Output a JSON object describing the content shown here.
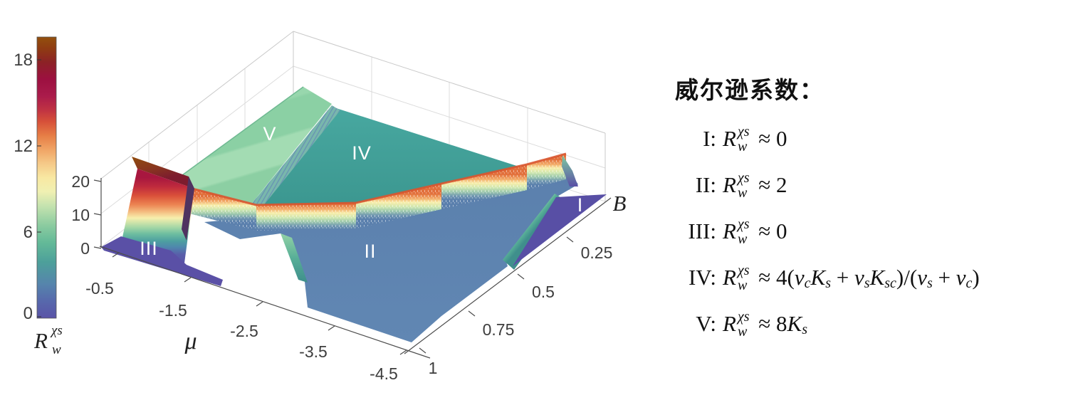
{
  "figure": {
    "background": "#ffffff"
  },
  "colorbar": {
    "ticks": [
      "18",
      "12",
      "6",
      "0"
    ],
    "label_base": "R",
    "label_sup": "χs",
    "label_sub": "w",
    "vmin": 0,
    "vmax": 19.5
  },
  "zaxis": {
    "ticks": [
      "20",
      "10",
      "0"
    ]
  },
  "xaxis": {
    "label": "μ",
    "ticks": [
      "-0.5",
      "-1.5",
      "-2.5",
      "-3.5",
      "-4.5"
    ]
  },
  "yaxis": {
    "label": "B",
    "ticks": [
      "1",
      "0.75",
      "0.5",
      "0.25"
    ]
  },
  "regions": {
    "I": "I",
    "II": "II",
    "III": "III",
    "IV": "IV",
    "V": "V"
  },
  "legend": {
    "title": "威尔逊系数：",
    "items": [
      {
        "label": "I:",
        "parts": [
          {
            "t": "R",
            "i": 1
          },
          {
            "sup": "χs",
            "sub": "w"
          },
          {
            "t": " ≈ 0"
          }
        ]
      },
      {
        "label": "II:",
        "parts": [
          {
            "t": "R",
            "i": 1
          },
          {
            "sup": "χs",
            "sub": "w"
          },
          {
            "t": " ≈ 2"
          }
        ]
      },
      {
        "label": "III:",
        "parts": [
          {
            "t": "R",
            "i": 1
          },
          {
            "sup": "χs",
            "sub": "w"
          },
          {
            "t": " ≈ 0"
          }
        ]
      },
      {
        "label": "IV:",
        "parts": [
          {
            "t": "R",
            "i": 1
          },
          {
            "sup": "χs",
            "sub": "w"
          },
          {
            "t": " ≈ 4("
          },
          {
            "t": "v",
            "i": 1
          },
          {
            "sub": "c"
          },
          {
            "t": "K",
            "i": 1
          },
          {
            "sub": "s"
          },
          {
            "t": " + "
          },
          {
            "t": "v",
            "i": 1
          },
          {
            "sub": "s"
          },
          {
            "t": "K",
            "i": 1
          },
          {
            "sub": "sc"
          },
          {
            "t": ")/("
          },
          {
            "t": "v",
            "i": 1
          },
          {
            "sub": "s"
          },
          {
            "t": " + "
          },
          {
            "t": "v",
            "i": 1
          },
          {
            "sub": "c"
          },
          {
            "t": ")"
          }
        ]
      },
      {
        "label": "V:",
        "parts": [
          {
            "t": "R",
            "i": 1
          },
          {
            "sup": "χs",
            "sub": "w"
          },
          {
            "t": " ≈ 8"
          },
          {
            "t": "K",
            "i": 1
          },
          {
            "sub": "s"
          }
        ]
      }
    ]
  },
  "colors": {
    "region_I_III_purple": "#5a50a6",
    "region_II_steelblue": "#5b80ad",
    "region_IV_teal": "#3f9f9a",
    "region_V_green": "#8ccfa3",
    "crest_orange": "#e2703c",
    "ridge_crimson": "#a21646",
    "ridge_brown": "#91480e",
    "grid_grey": "#dcdcdc",
    "axis_dark": "#4d4d4d"
  },
  "chart_data": {
    "type": "heatmap",
    "description": "MATLAB-style 3D surface plot of the Wilson ratio R_w^χs over the (μ, B) plane; five flat phase plateaus separated by sharp ridge walls",
    "xlabel": "μ",
    "x_ticks": [
      -0.5,
      -1.5,
      -2.5,
      -3.5,
      -4.5
    ],
    "x_range": [
      -4.5,
      -0.5
    ],
    "ylabel": "B",
    "y_ticks": [
      1,
      0.75,
      0.5,
      0.25
    ],
    "y_range": [
      0.05,
      1
    ],
    "zlabel": "R_w^χs",
    "z_ticks": [
      0,
      10,
      20
    ],
    "z_range": [
      0,
      20
    ],
    "colorbar_ticks": [
      0,
      6,
      12,
      18
    ],
    "colorbar_range": [
      0,
      19.5
    ],
    "grid": true,
    "legend_position": "right of plot",
    "regions": [
      {
        "name": "I",
        "approx_z": 0,
        "location": "small B, μ near -4.5 (right floor corner)"
      },
      {
        "name": "II",
        "approx_z": 2,
        "location": "large B front plain"
      },
      {
        "name": "III",
        "approx_z": 0,
        "location": "large B, μ between -0.5 and -1.1 (left floor)"
      },
      {
        "name": "IV",
        "approx_z": 4.5,
        "location": "small B central plateau"
      },
      {
        "name": "V",
        "approx_z": 6.6,
        "location": "small B plateau, μ between -1.2 and -2.6"
      },
      {
        "name": "III/V boundary ridge",
        "approx_z": 19.5,
        "location": "μ ≈ -1.1, B ≳ 0.8 (tall dark-red wall)"
      },
      {
        "name": "II/IV boundary ridge",
        "approx_z": 11,
        "location": "curved crest from (μ≈-1.3,B≈0.8) to (μ≈-4.5,B≈0.3)"
      },
      {
        "name": "II/I boundary ridge",
        "approx_z": 6,
        "location": "μ ≈ -4.2, small B (green wall)"
      }
    ],
    "formulas": [
      "I: R_w^χs ≈ 0",
      "II: R_w^χs ≈ 2",
      "III: R_w^χs ≈ 0",
      "IV: R_w^χs ≈ 4(v_c K_s + v_s K_sc)/(v_s + v_c)",
      "V: R_w^χs ≈ 8K_s"
    ]
  }
}
